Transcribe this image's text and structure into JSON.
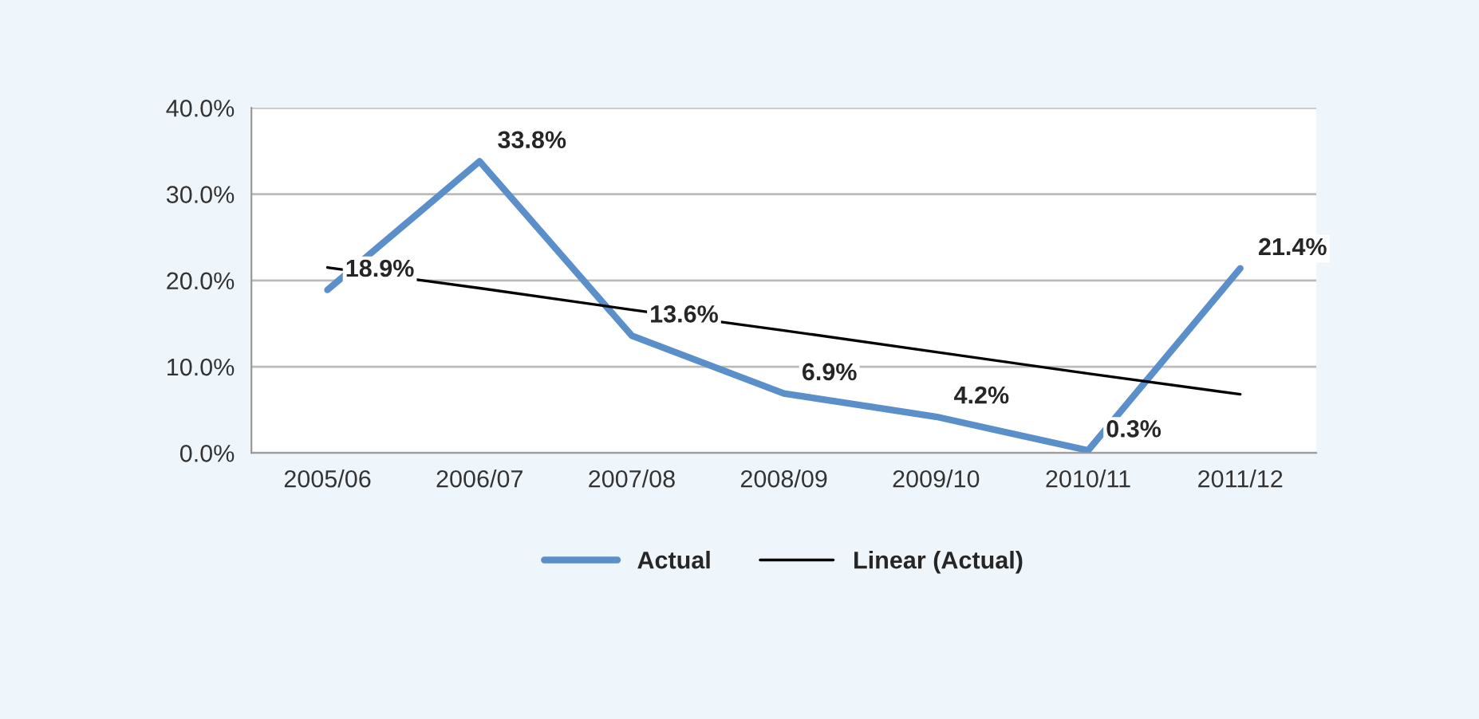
{
  "chart_data": {
    "type": "line",
    "categories": [
      "2005/06",
      "2006/07",
      "2007/08",
      "2008/09",
      "2009/10",
      "2010/11",
      "2011/12"
    ],
    "series": [
      {
        "name": "Actual",
        "color": "#5b8fc9",
        "values": [
          18.9,
          33.8,
          13.6,
          6.9,
          4.2,
          0.3,
          21.4
        ]
      },
      {
        "name": "Linear (Actual)",
        "color": "#000000",
        "values": [
          21.5,
          19.1,
          16.6,
          14.2,
          11.7,
          9.2,
          6.8
        ]
      }
    ],
    "ylim": [
      0,
      40
    ],
    "yticks": [
      {
        "value": 0,
        "label": "0.0%"
      },
      {
        "value": 10,
        "label": "10.0%"
      },
      {
        "value": 20,
        "label": "20.0%"
      },
      {
        "value": 30,
        "label": "30.0%"
      },
      {
        "value": 40,
        "label": "40.0%"
      }
    ],
    "value_labels": [
      "18.9%",
      "33.8%",
      "13.6%",
      "6.9%",
      "4.2%",
      "0.3%",
      "21.4%"
    ],
    "grid": "y",
    "legend": "bottom",
    "marker": "none",
    "line_style": "solid"
  }
}
